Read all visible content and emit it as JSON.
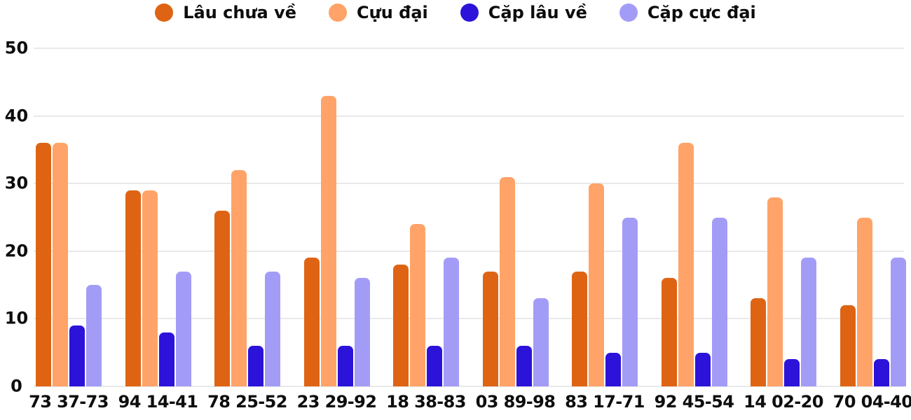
{
  "chart_data": {
    "type": "bar",
    "title": "",
    "xlabel": "",
    "ylabel": "",
    "categories": [
      "73 37-73",
      "94 14-41",
      "78 25-52",
      "23 29-92",
      "18 38-83",
      "03 89-98",
      "83 17-71",
      "92 45-54",
      "14 02-20",
      "70 04-40"
    ],
    "series": [
      {
        "name": "Lâu chưa về",
        "color": "#de6414",
        "values": [
          36,
          29,
          26,
          19,
          18,
          17,
          17,
          16,
          13,
          12
        ]
      },
      {
        "name": "Cựu đại",
        "color": "#ffa369",
        "values": [
          36,
          29,
          32,
          43,
          24,
          31,
          30,
          36,
          28,
          25
        ]
      },
      {
        "name": "Cặp lâu về",
        "color": "#2b13d9",
        "values": [
          9,
          8,
          6,
          6,
          6,
          6,
          5,
          5,
          4,
          4
        ]
      },
      {
        "name": "Cặp cực đại",
        "color": "#a39cf7",
        "values": [
          15,
          17,
          17,
          16,
          19,
          13,
          25,
          25,
          19,
          19
        ]
      }
    ],
    "ylim": [
      0,
      50
    ],
    "yticks": [
      0,
      10,
      20,
      30,
      40,
      50
    ],
    "grid": true,
    "legend_position": "top",
    "colors": {
      "grid": "#e9e9e9",
      "text": "#0d0d0d",
      "background": "#ffffff"
    }
  }
}
